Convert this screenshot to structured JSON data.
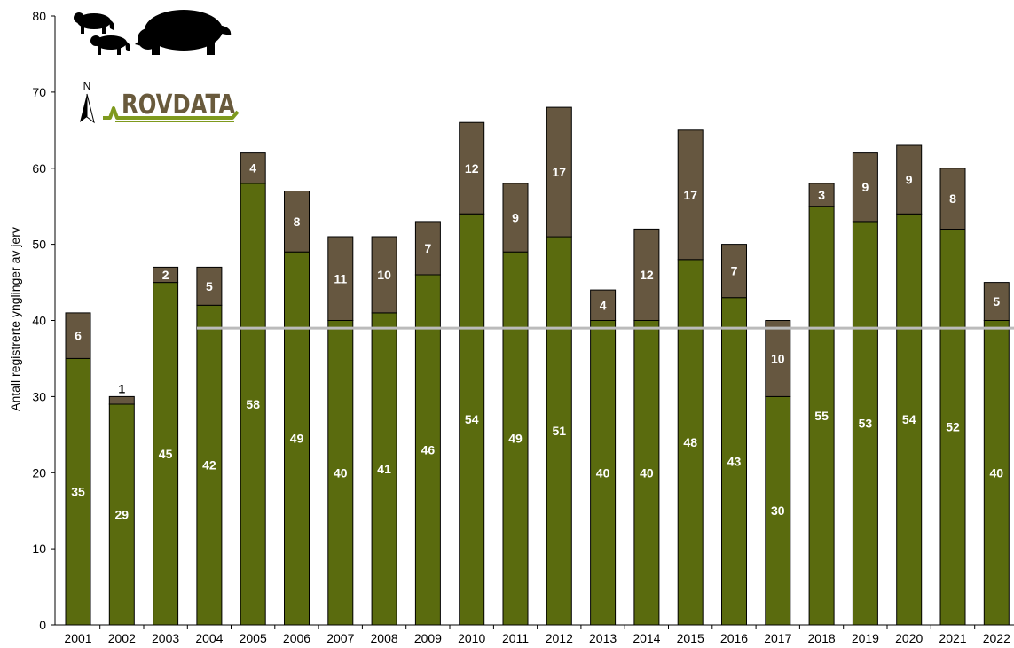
{
  "chart_data": {
    "type": "bar",
    "stacked": true,
    "categories": [
      "2001",
      "2002",
      "2003",
      "2004",
      "2005",
      "2006",
      "2007",
      "2008",
      "2009",
      "2010",
      "2011",
      "2012",
      "2013",
      "2014",
      "2015",
      "2016",
      "2017",
      "2018",
      "2019",
      "2020",
      "2021",
      "2022"
    ],
    "series": [
      {
        "color": "#5a6b0e",
        "values": [
          35,
          29,
          45,
          42,
          58,
          49,
          40,
          41,
          46,
          54,
          49,
          51,
          40,
          40,
          48,
          43,
          30,
          55,
          53,
          54,
          52,
          40
        ]
      },
      {
        "color": "#665740",
        "values": [
          6,
          1,
          2,
          5,
          4,
          8,
          11,
          10,
          7,
          12,
          9,
          17,
          4,
          12,
          17,
          7,
          10,
          3,
          9,
          9,
          8,
          5
        ]
      }
    ],
    "reference_line": {
      "value": 39,
      "color": "#bbbbbb"
    },
    "ylabel": "Antall registrerte ynglinger av jerv",
    "xlabel": "",
    "title": "",
    "ylim": [
      0,
      80
    ],
    "yticks": [
      "0",
      "10",
      "20",
      "30",
      "40",
      "50",
      "60",
      "70",
      "80"
    ],
    "grid": false,
    "legend": "none"
  },
  "logo": {
    "text": "ROVDATA",
    "north_label": "N"
  }
}
